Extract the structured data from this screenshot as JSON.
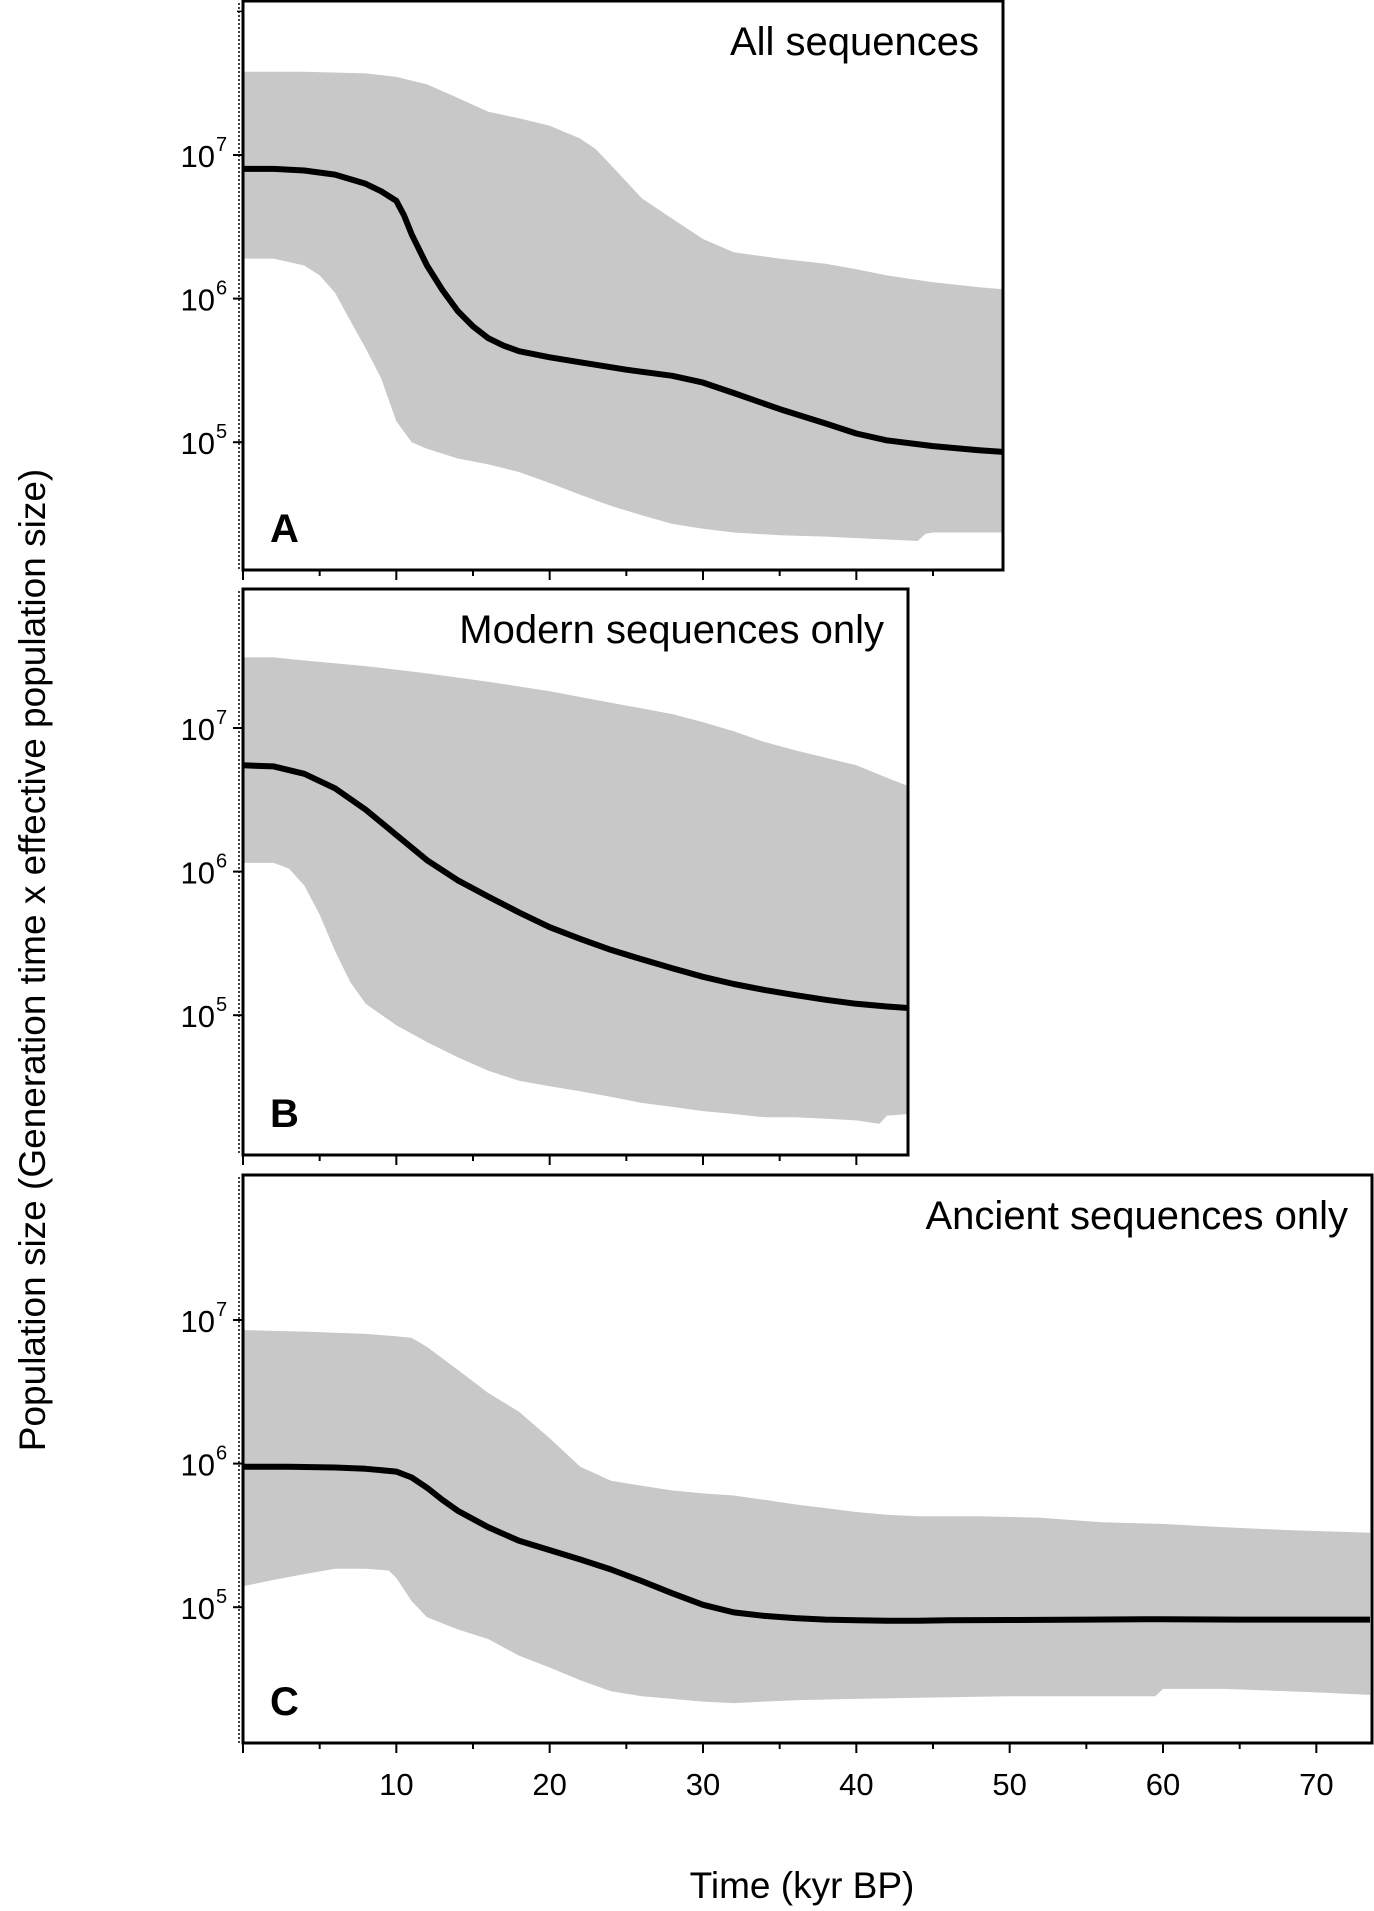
{
  "chart_data": {
    "type": "area",
    "ylabel": "Population size (Generation time x effective population size)",
    "xlabel": "Time (kyr BP)",
    "x_ticks": [
      10,
      20,
      30,
      40,
      50,
      60,
      70
    ],
    "y_scale": "log",
    "y_ticks": [
      {
        "value": 100000,
        "base": "10",
        "exp": "5"
      },
      {
        "value": 1000000,
        "base": "10",
        "exp": "6"
      },
      {
        "value": 10000000,
        "base": "10",
        "exp": "7"
      }
    ],
    "band_color": "#c8c8c8",
    "line_color": "#000000",
    "panels": [
      {
        "letter": "A",
        "title": "All sequences",
        "xlim": [
          0,
          50
        ],
        "ylim": [
          10000,
          100000000
        ],
        "median": {
          "x": [
            0,
            2,
            4,
            6,
            8,
            9,
            10,
            10.5,
            11,
            12,
            13,
            14,
            15,
            16,
            17,
            18,
            20,
            22,
            25,
            28,
            30,
            32,
            35,
            38,
            40,
            42,
            45,
            48,
            50
          ],
          "y": [
            8000000,
            8000000,
            7800000,
            7300000,
            6300000,
            5600000,
            4800000,
            3800000,
            2800000,
            1700000,
            1150000,
            820000,
            640000,
            530000,
            470000,
            430000,
            390000,
            360000,
            320000,
            290000,
            260000,
            220000,
            170000,
            135000,
            115000,
            103000,
            94000,
            88000,
            85000
          ]
        },
        "upper": {
          "x": [
            0,
            4,
            8,
            10,
            12,
            14,
            16,
            18,
            20,
            22,
            23,
            24,
            26,
            28,
            30,
            32,
            35,
            38,
            40,
            42,
            45,
            48,
            50
          ],
          "y": [
            38000000,
            38000000,
            37000000,
            35000000,
            31000000,
            25000000,
            20000000,
            18000000,
            16000000,
            13000000,
            11000000,
            8500000,
            5000000,
            3600000,
            2600000,
            2100000,
            1900000,
            1750000,
            1600000,
            1450000,
            1300000,
            1200000,
            1150000
          ]
        },
        "lower": {
          "x": [
            0,
            2,
            4,
            5,
            6,
            7,
            8,
            9,
            10,
            11,
            12,
            14,
            16,
            18,
            20,
            22,
            24,
            26,
            28,
            30,
            32,
            35,
            38,
            40,
            42,
            44,
            44.5,
            45,
            48,
            50
          ],
          "y": [
            1900000,
            1900000,
            1700000,
            1450000,
            1100000,
            700000,
            450000,
            280000,
            140000,
            100000,
            90000,
            77000,
            70000,
            62000,
            52000,
            43000,
            36000,
            31000,
            27000,
            25000,
            23500,
            22500,
            22000,
            21500,
            21000,
            20500,
            23000,
            23500,
            23500,
            23500
          ]
        }
      },
      {
        "letter": "B",
        "title": "Modern sequences only",
        "xlim": [
          0,
          43.5
        ],
        "ylim": [
          10000,
          100000000
        ],
        "median": {
          "x": [
            0,
            2,
            4,
            6,
            8,
            10,
            12,
            14,
            16,
            18,
            20,
            22,
            24,
            26,
            28,
            30,
            32,
            34,
            36,
            38,
            40,
            42,
            43.5
          ],
          "y": [
            5500000,
            5400000,
            4800000,
            3800000,
            2700000,
            1800000,
            1200000,
            870000,
            670000,
            520000,
            410000,
            340000,
            285000,
            245000,
            212000,
            185000,
            165000,
            150000,
            138000,
            128000,
            120000,
            115000,
            112000
          ]
        },
        "upper": {
          "x": [
            0,
            2,
            4,
            8,
            12,
            16,
            20,
            24,
            28,
            30,
            32,
            34,
            36,
            38,
            40,
            42,
            43.5
          ],
          "y": [
            31000000,
            31000000,
            29500000,
            27000000,
            24000000,
            21000000,
            18000000,
            15000000,
            12500000,
            11000000,
            9500000,
            8000000,
            7000000,
            6200000,
            5500000,
            4500000,
            3900000
          ]
        },
        "lower": {
          "x": [
            0,
            2,
            3,
            4,
            5,
            6,
            7,
            8,
            10,
            12,
            14,
            16,
            18,
            20,
            22,
            24,
            26,
            28,
            30,
            32,
            34,
            36,
            38,
            40,
            41.5,
            42,
            43.5
          ],
          "y": [
            1150000,
            1150000,
            1050000,
            800000,
            500000,
            280000,
            170000,
            120000,
            85000,
            65000,
            51000,
            41000,
            35000,
            32000,
            29500,
            27000,
            24500,
            23000,
            21500,
            20500,
            19500,
            19500,
            19000,
            18500,
            17500,
            20000,
            20500
          ]
        }
      },
      {
        "letter": "C",
        "title": "Ancient sequences only",
        "xlim": [
          0,
          73.5
        ],
        "ylim": [
          10000,
          100000000
        ],
        "median": {
          "x": [
            0,
            3,
            6,
            8,
            10,
            11,
            12,
            13,
            14,
            16,
            18,
            20,
            22,
            24,
            26,
            28,
            30,
            32,
            34,
            36,
            38,
            40,
            42,
            44,
            46,
            50,
            55,
            60,
            65,
            70,
            73.5
          ],
          "y": [
            950000,
            950000,
            940000,
            920000,
            880000,
            800000,
            680000,
            560000,
            470000,
            360000,
            290000,
            250000,
            215000,
            183000,
            152000,
            125000,
            104000,
            92000,
            87000,
            84000,
            82000,
            81000,
            80500,
            80500,
            81000,
            81500,
            82000,
            82500,
            82000,
            82000,
            82000
          ]
        },
        "upper": {
          "x": [
            0,
            4,
            8,
            10,
            11,
            12,
            14,
            16,
            18,
            20,
            22,
            24,
            26,
            28,
            30,
            32,
            34,
            36,
            38,
            40,
            42,
            44,
            48,
            52,
            56,
            60,
            64,
            68,
            73.5
          ],
          "y": [
            8500000,
            8300000,
            8000000,
            7700000,
            7500000,
            6500000,
            4500000,
            3100000,
            2300000,
            1500000,
            950000,
            760000,
            700000,
            650000,
            620000,
            600000,
            560000,
            520000,
            490000,
            460000,
            440000,
            430000,
            430000,
            420000,
            390000,
            380000,
            360000,
            345000,
            330000
          ]
        },
        "lower": {
          "x": [
            0,
            2,
            4,
            6,
            8,
            9.5,
            10,
            11,
            12,
            14,
            16,
            18,
            20,
            22,
            24,
            26,
            28,
            30,
            32,
            34,
            36,
            40,
            45,
            50,
            55,
            59.5,
            60,
            62,
            64,
            66,
            70,
            73.5
          ],
          "y": [
            140000,
            155000,
            170000,
            185000,
            185000,
            180000,
            160000,
            110000,
            85000,
            70000,
            60000,
            46000,
            38000,
            31000,
            26000,
            24000,
            23000,
            22000,
            21500,
            22000,
            22500,
            23000,
            23500,
            24000,
            24000,
            24000,
            27000,
            27000,
            27000,
            26500,
            25500,
            24500
          ]
        }
      }
    ]
  }
}
